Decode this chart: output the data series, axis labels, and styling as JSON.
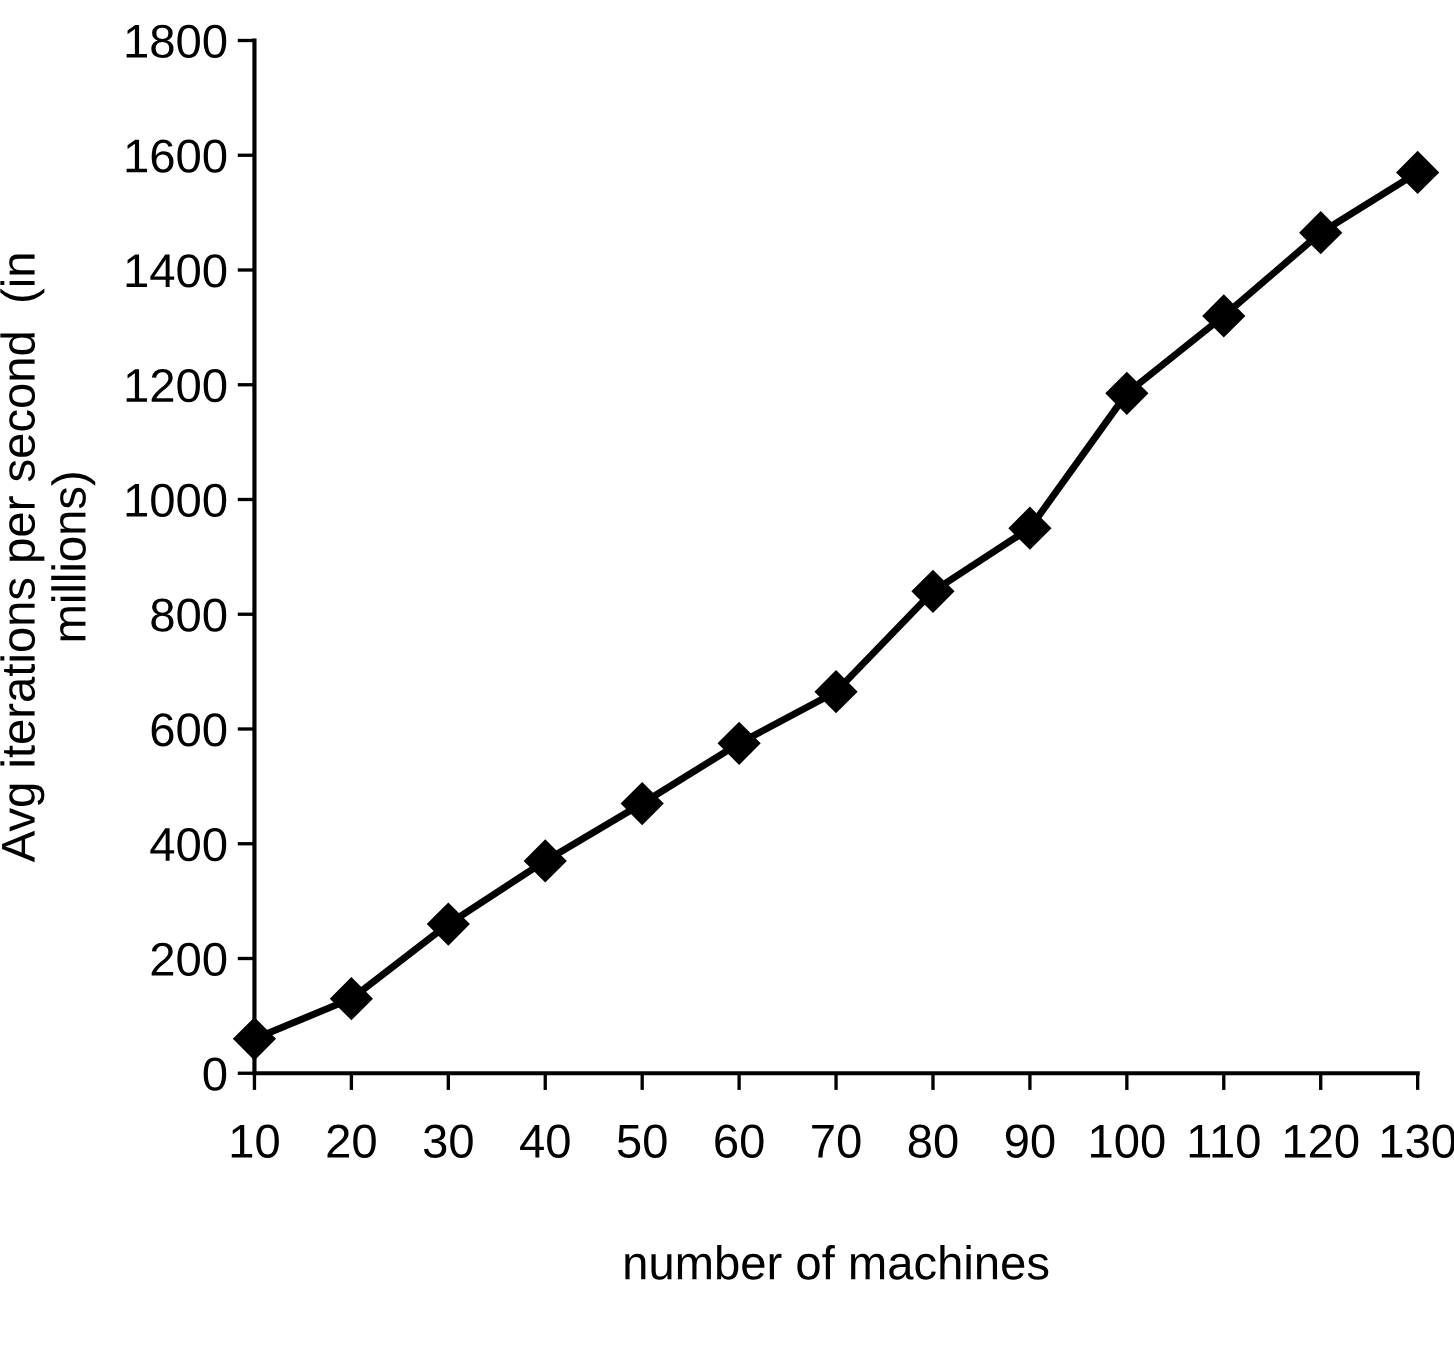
{
  "chart_data": {
    "type": "line",
    "xlabel": "number of machines",
    "ylabel": "Avg iterations per second  (in\nmillions)",
    "x": [
      10,
      20,
      30,
      40,
      50,
      60,
      70,
      80,
      90,
      100,
      110,
      120,
      130
    ],
    "series": [
      {
        "color": "#000000",
        "values": [
          60,
          130,
          260,
          370,
          470,
          575,
          665,
          840,
          950,
          1185,
          1320,
          1465,
          1570
        ]
      }
    ],
    "xlim": [
      10,
      130
    ],
    "xticks": [
      10,
      20,
      30,
      40,
      50,
      60,
      70,
      80,
      90,
      100,
      110,
      120,
      130
    ],
    "ylim": [
      0,
      1800
    ],
    "yticks": [
      0,
      200,
      400,
      600,
      800,
      1000,
      1200,
      1400,
      1600,
      1800
    ],
    "grid": false,
    "legend": false,
    "marker": "diamond",
    "line_style": "solid"
  }
}
